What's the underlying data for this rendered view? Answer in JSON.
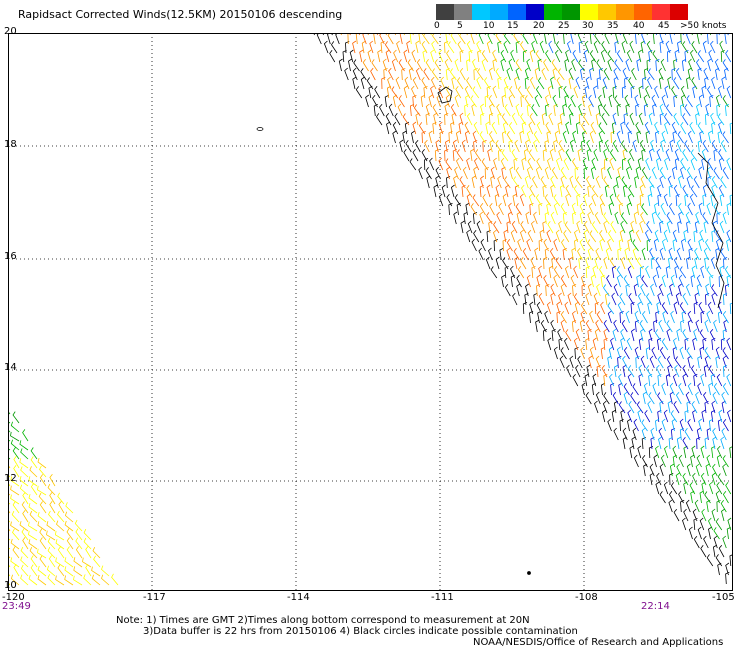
{
  "title": "Rapidsact Corrected Winds(12.5KM) 20150106 descending",
  "colorbar": {
    "colors": [
      "#404040",
      "#808080",
      "#00c8ff",
      "#00aaff",
      "#0064ff",
      "#0000c8",
      "#00b400",
      "#009600",
      "#ffff00",
      "#ffc800",
      "#ff9600",
      "#ff6400",
      "#ff3232",
      "#dc0000",
      "#a05000",
      "#804000",
      "#ff00ff",
      "#c800c8",
      "#800080",
      "#500050"
    ],
    "labels": [
      "0",
      "5",
      "10",
      "15",
      "20",
      "25",
      "30",
      "35",
      "40",
      "45",
      ">50 knots"
    ]
  },
  "axes": {
    "lat_labels": [
      "20",
      "18",
      "16",
      "14",
      "12",
      "10"
    ],
    "lon_labels": [
      "-120",
      "-117",
      "-114",
      "-111",
      "-108",
      "-105"
    ]
  },
  "times": {
    "left": "23:49",
    "right": "22:14"
  },
  "notes": {
    "line1": "Note: 1) Times are GMT 2)Times along bottom correspond to measurement at 20N",
    "line2": "3)Data buffer is 22 hrs from 20150106 4) Black circles indicate possible contamination"
  },
  "credit": "NOAA/NESDIS/Office of Research and Applications"
}
